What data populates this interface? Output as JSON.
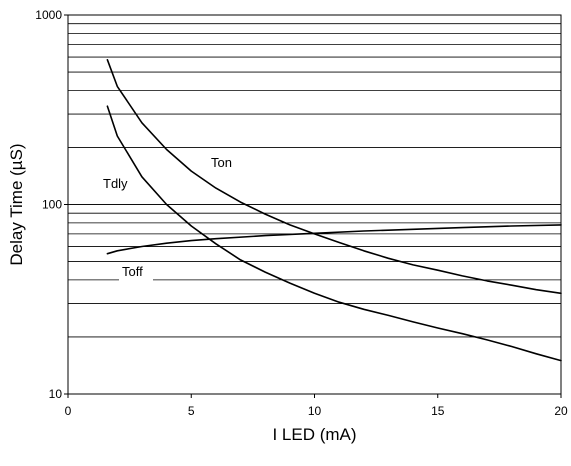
{
  "chart_data": {
    "type": "line",
    "title": "",
    "xlabel": "I LED (mA)",
    "ylabel": "Delay Time (µS)",
    "xlim": [
      0,
      20
    ],
    "ylim": [
      10,
      1000
    ],
    "yscale": "log",
    "grid": "horizontal major and minor lines on log y axis",
    "legend": "none (series labeled directly on plot)",
    "x_ticks": [
      0,
      5,
      10,
      15,
      20
    ],
    "x_tick_labels": [
      "0",
      "5",
      "10",
      "15",
      "20"
    ],
    "y_ticks": [
      10,
      100,
      1000
    ],
    "y_tick_labels": [
      "10",
      "100",
      "1000"
    ],
    "series": [
      {
        "name": "Ton",
        "x": [
          1.6,
          2,
          3,
          4,
          5,
          6,
          7,
          8,
          9,
          10,
          11,
          12,
          13,
          14,
          15,
          16,
          17,
          18,
          19,
          20
        ],
        "y": [
          580,
          420,
          270,
          195,
          150,
          122,
          103,
          89,
          78,
          70,
          63,
          57,
          52,
          48,
          45,
          42,
          39.5,
          37.5,
          35.5,
          34
        ]
      },
      {
        "name": "Tdly",
        "x": [
          1.6,
          2,
          3,
          4,
          5,
          6,
          7,
          8,
          9,
          10,
          11,
          12,
          13,
          14,
          15,
          16,
          17,
          18,
          19,
          20
        ],
        "y": [
          330,
          230,
          140,
          100,
          77,
          62,
          51,
          44,
          38.5,
          34,
          30.5,
          28,
          26,
          24,
          22.3,
          20.8,
          19.3,
          17.8,
          16.3,
          15
        ]
      },
      {
        "name": "Toff",
        "x": [
          1.6,
          2,
          3,
          4,
          5,
          6,
          8,
          10,
          12,
          14,
          16,
          18,
          20
        ],
        "y": [
          55,
          57,
          60,
          62.5,
          64.5,
          66,
          68.5,
          70.5,
          72.5,
          74,
          75.5,
          77,
          78
        ]
      }
    ]
  }
}
